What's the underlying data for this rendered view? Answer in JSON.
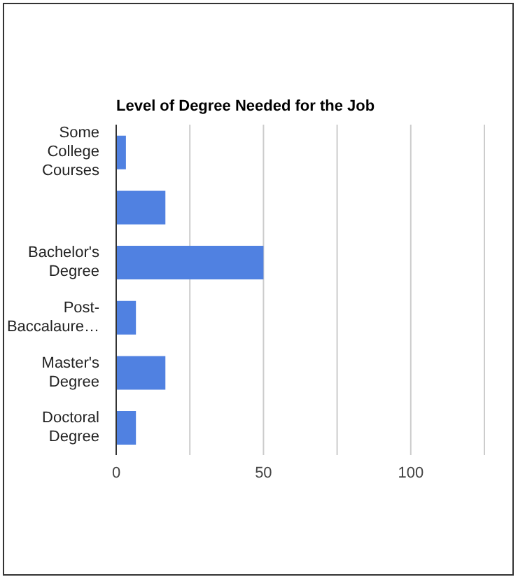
{
  "chart_data": {
    "type": "bar",
    "orientation": "horizontal",
    "title": "Level of Degree Needed for the Job",
    "categories": [
      "Some College Courses",
      null,
      "Bachelor's Degree",
      "Post-Baccalaure…",
      "Master's Degree",
      "Doctoral Degree"
    ],
    "values": [
      3.3,
      16.7,
      50,
      6.7,
      16.7,
      6.7
    ],
    "color": "#5081e1",
    "xlim": [
      0,
      125
    ],
    "xticks": [
      0,
      {
        "value": 25,
        "label": null
      },
      50,
      {
        "value": 75,
        "label": null
      },
      100,
      {
        "value": 125,
        "label": null
      }
    ],
    "grid": "x",
    "legend": false
  }
}
